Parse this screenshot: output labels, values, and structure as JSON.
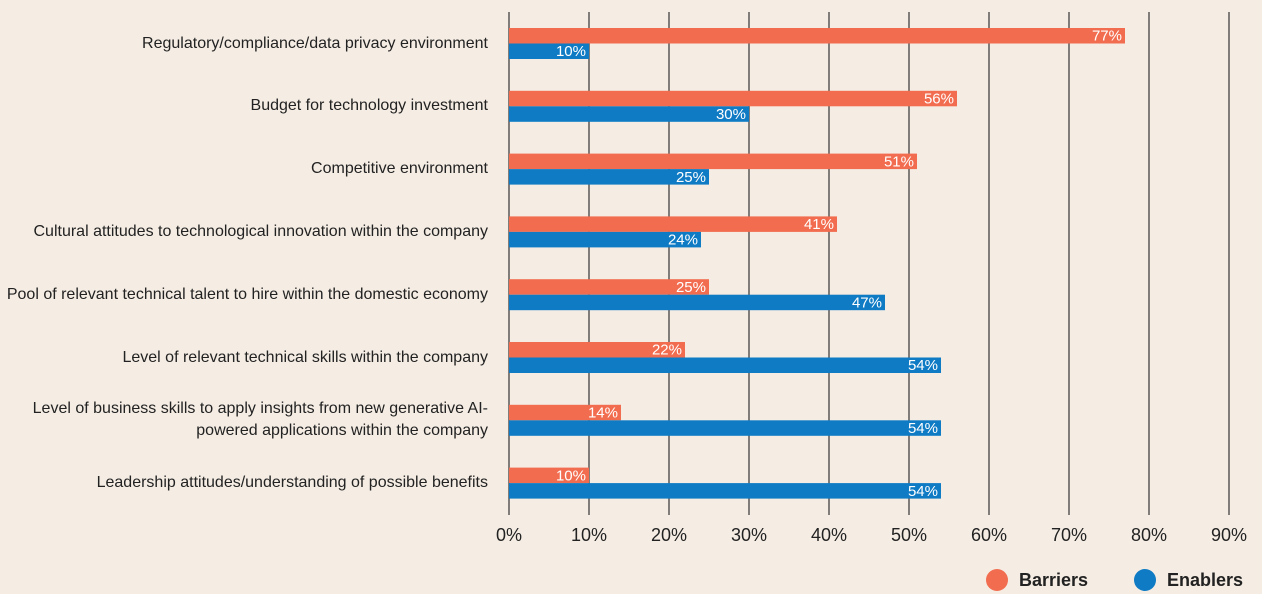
{
  "chart_data": {
    "type": "bar",
    "orientation": "horizontal",
    "categories": [
      "Regulatory/compliance/data privacy environment",
      "Budget for technology investment",
      "Competitive environment",
      "Cultural attitudes to technological innovation within the company",
      "Pool of relevant technical talent to hire within the domestic economy",
      "Level of relevant technical skills within the company",
      "Level of business skills to apply insights from new generative AI-powered applications within the company",
      "Leadership attitudes/understanding of possible benefits"
    ],
    "series": [
      {
        "name": "Barriers",
        "color": "#f26c4f",
        "values": [
          77,
          56,
          51,
          41,
          25,
          22,
          14,
          10
        ],
        "value_labels": [
          "77%",
          "56%",
          "51%",
          "41%",
          "25%",
          "22%",
          "14%",
          "10%"
        ]
      },
      {
        "name": "Enablers",
        "color": "#0f7bc4",
        "values": [
          10,
          30,
          25,
          24,
          47,
          54,
          54,
          54
        ],
        "value_labels": [
          "10%",
          "30%",
          "25%",
          "24%",
          "47%",
          "54%",
          "54%",
          "54%"
        ]
      }
    ],
    "xlim": [
      0,
      90
    ],
    "xticks": [
      {
        "value": 0,
        "label": "0%"
      },
      {
        "value": 10,
        "label": "10%"
      },
      {
        "value": 20,
        "label": "20%"
      },
      {
        "value": 30,
        "label": "30%"
      },
      {
        "value": 40,
        "label": "40%"
      },
      {
        "value": 50,
        "label": "50%"
      },
      {
        "value": 60,
        "label": "60%"
      },
      {
        "value": 70,
        "label": "70%"
      },
      {
        "value": 80,
        "label": "80%"
      },
      {
        "value": 90,
        "label": "90%"
      }
    ],
    "grid": true,
    "legend": "bottom-right"
  }
}
